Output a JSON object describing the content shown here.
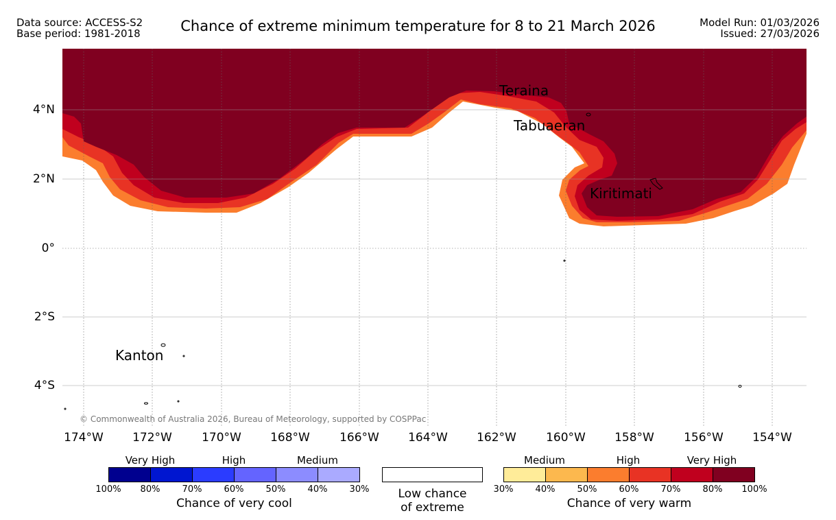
{
  "header": {
    "data_source": "Data source: ACCESS-S2",
    "base_period": "Base period: 1981-2018",
    "title": "Chance of extreme minimum temperature for 8 to 21 March 2026",
    "model_run": "Model Run: 01/03/2026",
    "issued": "Issued: 27/03/2026"
  },
  "map": {
    "lat_labels": [
      "4°N",
      "2°N",
      "0°",
      "2°S",
      "4°S"
    ],
    "lon_labels": [
      "174°W",
      "172°W",
      "170°W",
      "168°W",
      "166°W",
      "164°W",
      "162°W",
      "160°W",
      "158°W",
      "156°W",
      "154°W"
    ],
    "place_labels": [
      "Teraina",
      "Tabuaeran",
      "Kiritimati",
      "Kanton"
    ],
    "copyright": "© Commonwealth of Australia 2026, Bureau of Meteorology, supported by COSPPac",
    "colors": {
      "c100": "#800020",
      "c80": "#c0001e",
      "c70": "#e83324",
      "c60": "#fb7d2e"
    }
  },
  "legend": {
    "cool": {
      "categories": [
        "Very High",
        "High",
        "Medium"
      ],
      "ticks": [
        "100%",
        "80%",
        "70%",
        "60%",
        "50%",
        "40%",
        "30%"
      ],
      "colors": [
        "#00008f",
        "#0016d0",
        "#2b3cff",
        "#6464ff",
        "#8c8cff",
        "#aaaaff"
      ],
      "title": "Chance of very cool"
    },
    "low": {
      "line1": "Low chance",
      "line2": "of extreme"
    },
    "warm": {
      "categories": [
        "Medium",
        "High",
        "Very High"
      ],
      "ticks": [
        "30%",
        "40%",
        "50%",
        "60%",
        "70%",
        "80%",
        "100%"
      ],
      "colors": [
        "#ffec99",
        "#fcb84e",
        "#fb7d2e",
        "#e83324",
        "#c0001e",
        "#800020"
      ],
      "title": "Chance of very warm"
    }
  }
}
